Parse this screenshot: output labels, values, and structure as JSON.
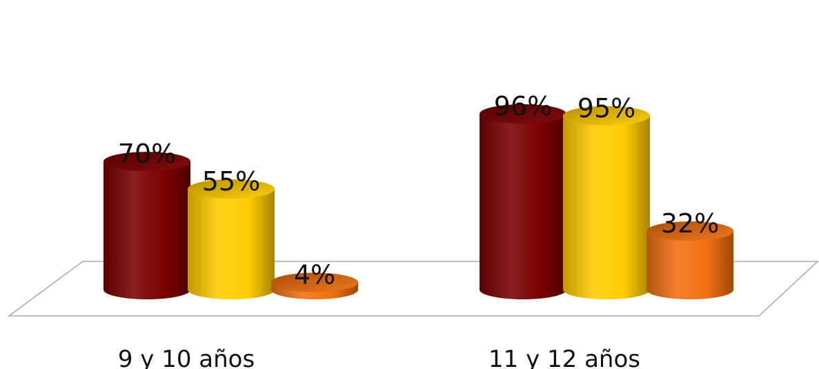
{
  "chart_data": {
    "type": "bar",
    "categories": [
      "9 y 10 años",
      "11 y 12 años"
    ],
    "series": [
      {
        "values": [
          70,
          96
        ],
        "color": "#7a0000"
      },
      {
        "values": [
          55,
          95
        ],
        "color": "#ffcc00"
      },
      {
        "values": [
          4,
          32
        ],
        "color": "#f07010"
      }
    ],
    "data_labels": [
      [
        "70%",
        "96%"
      ],
      [
        "55%",
        "95%"
      ],
      [
        "4%",
        "32%"
      ]
    ],
    "ylim": [
      0,
      100
    ],
    "grid": false,
    "legend": "none",
    "style": "3d-cylinder"
  }
}
